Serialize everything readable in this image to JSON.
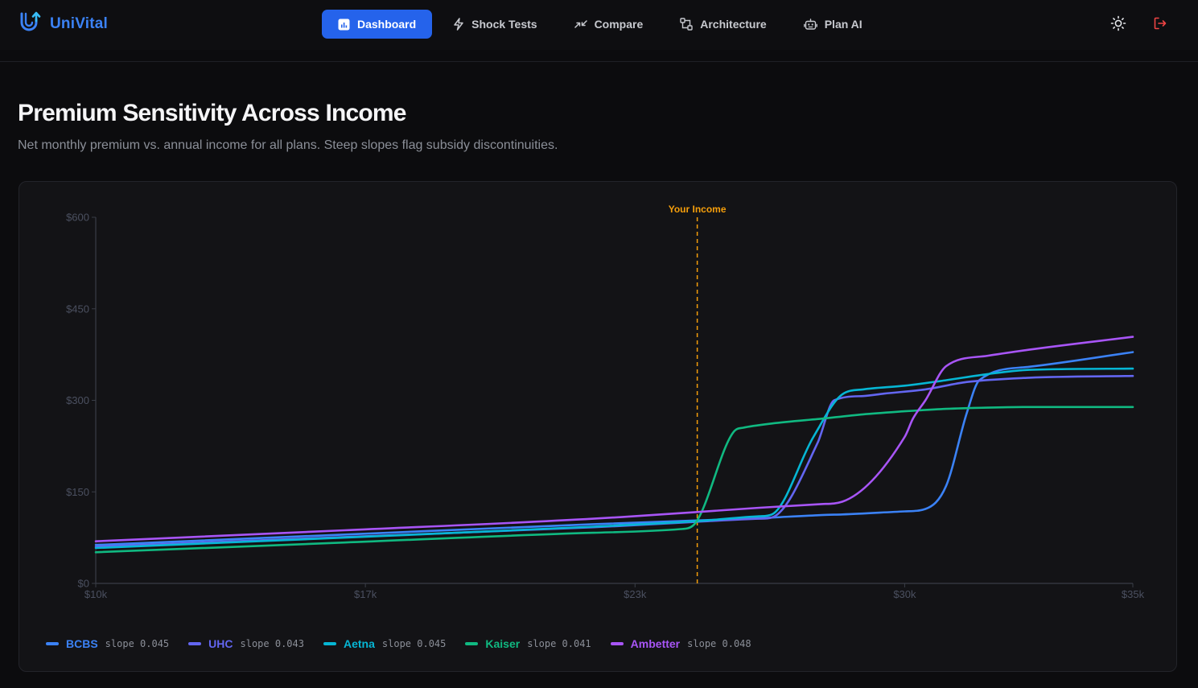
{
  "app": {
    "name": "UniVital",
    "brand_color": "#3b82f6"
  },
  "nav": {
    "items": [
      {
        "label": "Dashboard",
        "icon": "bar-chart-icon",
        "active": true
      },
      {
        "label": "Shock Tests",
        "icon": "lightning-icon",
        "active": false
      },
      {
        "label": "Compare",
        "icon": "compare-arrows-icon",
        "active": false
      },
      {
        "label": "Architecture",
        "icon": "architecture-icon",
        "active": false
      },
      {
        "label": "Plan AI",
        "icon": "robot-icon",
        "active": false
      }
    ],
    "active_color": "#2563eb"
  },
  "header_actions": {
    "theme_icon": "sun-icon",
    "logout_icon": "logout-icon",
    "logout_color": "#ef4444"
  },
  "page": {
    "title": "Premium Sensitivity Across Income",
    "subtitle": "Net monthly premium vs. annual income for all plans. Steep slopes flag subsidy discontinuities."
  },
  "chart_data": {
    "type": "line",
    "title": "",
    "xlabel": "",
    "ylabel": "",
    "xlim": [
      10000,
      35000
    ],
    "ylim": [
      0,
      600
    ],
    "x_ticks": [
      {
        "value": 10000,
        "label": "$10k"
      },
      {
        "value": 16500,
        "label": "$17k"
      },
      {
        "value": 23000,
        "label": "$23k"
      },
      {
        "value": 29500,
        "label": "$30k"
      },
      {
        "value": 35000,
        "label": "$35k"
      }
    ],
    "y_ticks": [
      {
        "value": 0,
        "label": "$0"
      },
      {
        "value": 150,
        "label": "$150"
      },
      {
        "value": 300,
        "label": "$300"
      },
      {
        "value": 450,
        "label": "$450"
      },
      {
        "value": 600,
        "label": "$600"
      }
    ],
    "grid": false,
    "marker": {
      "x": 24500,
      "label": "Your Income",
      "color": "#f59e0b"
    },
    "legend_position": "bottom-left",
    "series": [
      {
        "name": "BCBS",
        "slope": "slope 0.045",
        "color": "#3b82f6",
        "x": [
          10000,
          16000,
          22000,
          26000,
          27500,
          28000,
          29500,
          30000,
          30500,
          31000,
          31300,
          32500,
          35000
        ],
        "y": [
          63,
          80,
          97,
          107,
          112,
          113,
          118,
          122,
          160,
          280,
          333,
          355,
          379
        ]
      },
      {
        "name": "UHC",
        "slope": "slope 0.043",
        "color": "#6366f1",
        "x": [
          10000,
          16000,
          22000,
          24500,
          26000,
          26300,
          27400,
          27800,
          28500,
          29000,
          30000,
          31000,
          32500,
          35000
        ],
        "y": [
          60,
          76,
          92,
          101,
          106,
          108,
          230,
          300,
          307,
          311,
          318,
          330,
          337,
          340
        ]
      },
      {
        "name": "Aetna",
        "slope": "slope 0.045",
        "color": "#06b6d4",
        "x": [
          10000,
          16000,
          22000,
          24500,
          26000,
          26300,
          27300,
          28000,
          28500,
          29500,
          30500,
          31500,
          32500,
          35000
        ],
        "y": [
          58,
          75,
          93,
          102,
          110,
          113,
          240,
          310,
          318,
          324,
          333,
          343,
          350,
          352
        ]
      },
      {
        "name": "Kaiser",
        "slope": "slope 0.041",
        "color": "#10b981",
        "x": [
          10000,
          16000,
          22000,
          24100,
          24400,
          25400,
          25600,
          26300,
          27500,
          28500,
          29500,
          30500,
          31500,
          32500,
          35000
        ],
        "y": [
          51,
          67,
          83,
          89,
          95,
          250,
          255,
          262,
          270,
          277,
          282,
          286,
          288,
          289,
          289
        ]
      },
      {
        "name": "Ambetter",
        "slope": "slope 0.048",
        "color": "#a855f7",
        "x": [
          10000,
          16000,
          22000,
          24500,
          26000,
          27500,
          28000,
          29500,
          29700,
          30000,
          30500,
          31500,
          32500,
          35000
        ],
        "y": [
          69,
          87,
          106,
          117,
          124,
          130,
          134,
          240,
          270,
          300,
          356,
          373,
          383,
          404
        ]
      }
    ]
  }
}
